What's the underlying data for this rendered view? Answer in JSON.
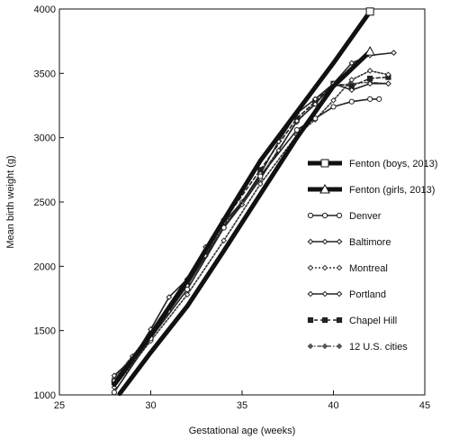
{
  "chart_data": {
    "type": "line",
    "title": "",
    "xlabel": "Gestational age (weeks)",
    "ylabel": "Mean birth weight (g)",
    "xlim": [
      25,
      45
    ],
    "ylim": [
      1000,
      4000
    ],
    "x_ticks": [
      "25",
      "30",
      "35",
      "40",
      "45"
    ],
    "y_ticks": [
      "1000",
      "1500",
      "2000",
      "2500",
      "3000",
      "3500",
      "4000"
    ],
    "grid": false,
    "legend_position": "right",
    "series": [
      {
        "name": "Fenton (boys, 2013)",
        "style": "thick-solid",
        "marker": "square-open",
        "color": "#111111",
        "points": [
          [
            28,
            1080
          ],
          [
            30,
            1470
          ],
          [
            32,
            1890
          ],
          [
            34,
            2360
          ],
          [
            36,
            2820
          ],
          [
            38,
            3200
          ],
          [
            40,
            3580
          ],
          [
            42,
            3980
          ]
        ]
      },
      {
        "name": "Fenton (girls, 2013)",
        "style": "thick-solid",
        "marker": "triangle-open",
        "color": "#111111",
        "points": [
          [
            28.3,
            1010
          ],
          [
            30,
            1330
          ],
          [
            32,
            1690
          ],
          [
            34,
            2120
          ],
          [
            36,
            2560
          ],
          [
            38,
            3000
          ],
          [
            40,
            3400
          ],
          [
            42,
            3670
          ]
        ]
      },
      {
        "name": "Denver",
        "style": "solid",
        "marker": "circle-open",
        "color": "#222222",
        "points": [
          [
            28,
            1020
          ],
          [
            30,
            1440
          ],
          [
            32,
            1820
          ],
          [
            34,
            2300
          ],
          [
            36,
            2700
          ],
          [
            38,
            3060
          ],
          [
            39,
            3150
          ],
          [
            40,
            3240
          ],
          [
            41,
            3280
          ],
          [
            42,
            3300
          ],
          [
            42.5,
            3300
          ]
        ]
      },
      {
        "name": "Baltimore",
        "style": "solid",
        "marker": "diamond-open",
        "color": "#222222",
        "points": [
          [
            28,
            1150
          ],
          [
            29,
            1280
          ],
          [
            30,
            1510
          ],
          [
            31,
            1760
          ],
          [
            32,
            1900
          ],
          [
            33,
            2150
          ],
          [
            34,
            2340
          ],
          [
            35,
            2500
          ],
          [
            36,
            2720
          ],
          [
            37,
            2970
          ],
          [
            38,
            3190
          ],
          [
            39,
            3300
          ],
          [
            40,
            3420
          ],
          [
            41,
            3580
          ],
          [
            42,
            3640
          ],
          [
            43.3,
            3660
          ]
        ]
      },
      {
        "name": "Montreal",
        "style": "dotted",
        "marker": "diamond-open",
        "color": "#333333",
        "points": [
          [
            28,
            1060
          ],
          [
            30,
            1420
          ],
          [
            32,
            1780
          ],
          [
            34,
            2200
          ],
          [
            36,
            2640
          ],
          [
            38,
            3020
          ],
          [
            39,
            3140
          ],
          [
            40,
            3290
          ],
          [
            41,
            3450
          ],
          [
            42,
            3520
          ],
          [
            43,
            3490
          ]
        ]
      },
      {
        "name": "Portland",
        "style": "solid",
        "marker": "diamond-open",
        "color": "#222222",
        "points": [
          [
            28,
            1110
          ],
          [
            29,
            1300
          ],
          [
            30,
            1450
          ],
          [
            31,
            1650
          ],
          [
            32,
            1850
          ],
          [
            33,
            2080
          ],
          [
            34,
            2300
          ],
          [
            35,
            2480
          ],
          [
            36,
            2680
          ],
          [
            37,
            2900
          ],
          [
            38,
            3130
          ],
          [
            39,
            3260
          ],
          [
            40,
            3420
          ],
          [
            41,
            3370
          ],
          [
            42,
            3420
          ],
          [
            43,
            3420
          ]
        ]
      },
      {
        "name": "Chapel Hill",
        "style": "dashed",
        "marker": "square-filled",
        "color": "#222222",
        "points": [
          [
            28,
            1100
          ],
          [
            30,
            1450
          ],
          [
            32,
            1880
          ],
          [
            34,
            2350
          ],
          [
            36,
            2750
          ],
          [
            38,
            3150
          ],
          [
            39,
            3280
          ],
          [
            40,
            3420
          ],
          [
            41,
            3400
          ],
          [
            42,
            3460
          ],
          [
            43,
            3470
          ]
        ]
      },
      {
        "name": "12 U.S. cities",
        "style": "dashdot",
        "marker": "diamond-filled",
        "color": "#555555",
        "points": [
          [
            28,
            1130
          ],
          [
            30,
            1480
          ],
          [
            32,
            1860
          ],
          [
            34,
            2320
          ],
          [
            36,
            2700
          ],
          [
            38,
            3120
          ],
          [
            39,
            3270
          ],
          [
            40,
            3400
          ],
          [
            41,
            3420
          ],
          [
            42,
            3430
          ],
          [
            43,
            3420
          ]
        ]
      }
    ]
  }
}
